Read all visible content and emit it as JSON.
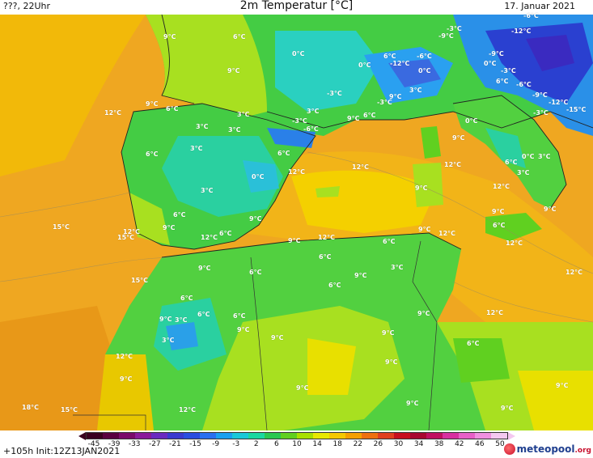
{
  "header": {
    "left_text": "???, 22Uhr",
    "title": "2m Temperatur [°C]",
    "date": "17. Januar 2021"
  },
  "labels": [
    {
      "text": "9°C",
      "pos": [
        210,
        46
      ]
    },
    {
      "text": "6°C",
      "pos": [
        296,
        46
      ]
    },
    {
      "text": "9°C",
      "pos": [
        289,
        88
      ]
    },
    {
      "text": "0°C",
      "pos": [
        369,
        67
      ]
    },
    {
      "text": "0°C",
      "pos": [
        451,
        81
      ]
    },
    {
      "text": "6°C",
      "pos": [
        482,
        70
      ]
    },
    {
      "text": "-12°C",
      "pos": [
        490,
        79
      ]
    },
    {
      "text": "-6°C",
      "pos": [
        523,
        70
      ]
    },
    {
      "text": "0°C",
      "pos": [
        525,
        88
      ]
    },
    {
      "text": "-9°C",
      "pos": [
        550,
        45
      ]
    },
    {
      "text": "-3°C",
      "pos": [
        560,
        36
      ]
    },
    {
      "text": "-6°C",
      "pos": [
        655,
        20
      ]
    },
    {
      "text": "-12°C",
      "pos": [
        640,
        39
      ]
    },
    {
      "text": "-9°C",
      "pos": [
        612,
        67
      ]
    },
    {
      "text": "0°C",
      "pos": [
        606,
        79
      ]
    },
    {
      "text": "-3°C",
      "pos": [
        627,
        88
      ]
    },
    {
      "text": "6°C",
      "pos": [
        621,
        101
      ]
    },
    {
      "text": "-6°C",
      "pos": [
        646,
        105
      ]
    },
    {
      "text": "-9°C",
      "pos": [
        666,
        118
      ]
    },
    {
      "text": "-12°C",
      "pos": [
        686,
        127
      ]
    },
    {
      "text": "-15°C",
      "pos": [
        708,
        136
      ]
    },
    {
      "text": "-3°C",
      "pos": [
        667,
        140
      ]
    },
    {
      "text": "-3°C",
      "pos": [
        412,
        116
      ]
    },
    {
      "text": "-3°C",
      "pos": [
        474,
        127
      ]
    },
    {
      "text": "9°C",
      "pos": [
        489,
        120
      ]
    },
    {
      "text": "3°C",
      "pos": [
        514,
        112
      ]
    },
    {
      "text": "9°C",
      "pos": [
        188,
        129
      ]
    },
    {
      "text": "6°C",
      "pos": [
        213,
        135
      ]
    },
    {
      "text": "12°C",
      "pos": [
        137,
        140
      ]
    },
    {
      "text": "3°C",
      "pos": [
        301,
        142
      ]
    },
    {
      "text": "3°C",
      "pos": [
        387,
        138
      ]
    },
    {
      "text": "9°C",
      "pos": [
        437,
        147
      ]
    },
    {
      "text": "6°C",
      "pos": [
        457,
        143
      ]
    },
    {
      "text": "-3°C",
      "pos": [
        369,
        150
      ]
    },
    {
      "text": "-6°C",
      "pos": [
        383,
        160
      ]
    },
    {
      "text": "3°C",
      "pos": [
        250,
        157
      ]
    },
    {
      "text": "3°C",
      "pos": [
        290,
        161
      ]
    },
    {
      "text": "0°C",
      "pos": [
        583,
        150
      ]
    },
    {
      "text": "9°C",
      "pos": [
        567,
        171
      ]
    },
    {
      "text": "3°C",
      "pos": [
        243,
        184
      ]
    },
    {
      "text": "6°C",
      "pos": [
        188,
        191
      ]
    },
    {
      "text": "6°C",
      "pos": [
        351,
        190
      ]
    },
    {
      "text": "12°C",
      "pos": [
        364,
        213
      ]
    },
    {
      "text": "12°C",
      "pos": [
        443,
        207
      ]
    },
    {
      "text": "12°C",
      "pos": [
        557,
        204
      ]
    },
    {
      "text": "0°C",
      "pos": [
        319,
        219
      ]
    },
    {
      "text": "6°C",
      "pos": [
        632,
        201
      ]
    },
    {
      "text": "0°C",
      "pos": [
        653,
        194
      ]
    },
    {
      "text": "3°C",
      "pos": [
        673,
        194
      ]
    },
    {
      "text": "3°C",
      "pos": [
        647,
        214
      ]
    },
    {
      "text": "3°C",
      "pos": [
        256,
        236
      ]
    },
    {
      "text": "9°C",
      "pos": [
        521,
        233
      ]
    },
    {
      "text": "12°C",
      "pos": [
        617,
        231
      ]
    },
    {
      "text": "6°C",
      "pos": [
        222,
        266
      ]
    },
    {
      "text": "9°C",
      "pos": [
        316,
        271
      ]
    },
    {
      "text": "9°C",
      "pos": [
        616,
        262
      ]
    },
    {
      "text": "9°C",
      "pos": [
        680,
        259
      ]
    },
    {
      "text": "6°C",
      "pos": [
        617,
        279
      ]
    },
    {
      "text": "15°C",
      "pos": [
        73,
        281
      ]
    },
    {
      "text": "12°C",
      "pos": [
        160,
        287
      ]
    },
    {
      "text": "15°C",
      "pos": [
        153,
        294
      ]
    },
    {
      "text": "9°C",
      "pos": [
        209,
        282
      ]
    },
    {
      "text": "12°C",
      "pos": [
        256,
        294
      ]
    },
    {
      "text": "6°C",
      "pos": [
        279,
        289
      ]
    },
    {
      "text": "9°C",
      "pos": [
        364,
        298
      ]
    },
    {
      "text": "12°C",
      "pos": [
        401,
        294
      ]
    },
    {
      "text": "6°C",
      "pos": [
        481,
        299
      ]
    },
    {
      "text": "9°C",
      "pos": [
        525,
        284
      ]
    },
    {
      "text": "12°C",
      "pos": [
        550,
        289
      ]
    },
    {
      "text": "12°C",
      "pos": [
        633,
        301
      ]
    },
    {
      "text": "6°C",
      "pos": [
        402,
        318
      ]
    },
    {
      "text": "3°C",
      "pos": [
        491,
        331
      ]
    },
    {
      "text": "9°C",
      "pos": [
        253,
        332
      ]
    },
    {
      "text": "6°C",
      "pos": [
        316,
        337
      ]
    },
    {
      "text": "12°C",
      "pos": [
        707,
        337
      ]
    },
    {
      "text": "15°C",
      "pos": [
        170,
        347
      ]
    },
    {
      "text": "9°C",
      "pos": [
        446,
        341
      ]
    },
    {
      "text": "6°C",
      "pos": [
        414,
        353
      ]
    },
    {
      "text": "6°C",
      "pos": [
        231,
        369
      ]
    },
    {
      "text": "6°C",
      "pos": [
        252,
        389
      ]
    },
    {
      "text": "9°C",
      "pos": [
        205,
        395
      ]
    },
    {
      "text": "3°C",
      "pos": [
        224,
        396
      ]
    },
    {
      "text": "6°C",
      "pos": [
        296,
        391
      ]
    },
    {
      "text": "9°C",
      "pos": [
        301,
        408
      ]
    },
    {
      "text": "9°C",
      "pos": [
        524,
        388
      ]
    },
    {
      "text": "12°C",
      "pos": [
        609,
        387
      ]
    },
    {
      "text": "9°C",
      "pos": [
        343,
        418
      ]
    },
    {
      "text": "9°C",
      "pos": [
        480,
        412
      ]
    },
    {
      "text": "3°C",
      "pos": [
        208,
        421
      ]
    },
    {
      "text": "6°C",
      "pos": [
        585,
        425
      ]
    },
    {
      "text": "12°C",
      "pos": [
        151,
        441
      ]
    },
    {
      "text": "9°C",
      "pos": [
        484,
        448
      ]
    },
    {
      "text": "9°C",
      "pos": [
        156,
        469
      ]
    },
    {
      "text": "9°C",
      "pos": [
        374,
        480
      ]
    },
    {
      "text": "9°C",
      "pos": [
        695,
        477
      ]
    },
    {
      "text": "18°C",
      "pos": [
        35,
        504
      ]
    },
    {
      "text": "15°C",
      "pos": [
        83,
        507
      ]
    },
    {
      "text": "12°C",
      "pos": [
        229,
        507
      ]
    },
    {
      "text": "9°C",
      "pos": [
        510,
        499
      ]
    },
    {
      "text": "9°C",
      "pos": [
        627,
        505
      ]
    }
  ],
  "colorbar": {
    "ticks": [
      "-45",
      "-39",
      "-33",
      "-27",
      "-21",
      "-15",
      "-9",
      "-3",
      "2",
      "6",
      "10",
      "14",
      "18",
      "22",
      "26",
      "30",
      "34",
      "38",
      "42",
      "46",
      "50"
    ],
    "colors": [
      "#3a0020",
      "#5a0040",
      "#7a0a6a",
      "#8a1a9a",
      "#6a2ac0",
      "#3a3acf",
      "#2a4ee0",
      "#2a70f0",
      "#1aa0f0",
      "#1ac8d8",
      "#1ad8a0",
      "#2ac850",
      "#60d020",
      "#a8e000",
      "#e8e800",
      "#f4c800",
      "#f4a000",
      "#ee7010",
      "#e04020",
      "#c81020",
      "#a80830",
      "#c01060",
      "#d830a0",
      "#e860c8",
      "#f090e0",
      "#f4c8f0"
    ]
  },
  "footer": {
    "init": "+105h Init:12Z13JAN2021",
    "logo_main": "meteopool",
    "logo_tld": ".org"
  },
  "palette": {
    "sea_warm": "#f0a020",
    "land_cool": "#3ccf3c",
    "land_mild": "#a8e020",
    "cold_blue": "#1a90e0",
    "very_cold": "#2a3ad0"
  }
}
